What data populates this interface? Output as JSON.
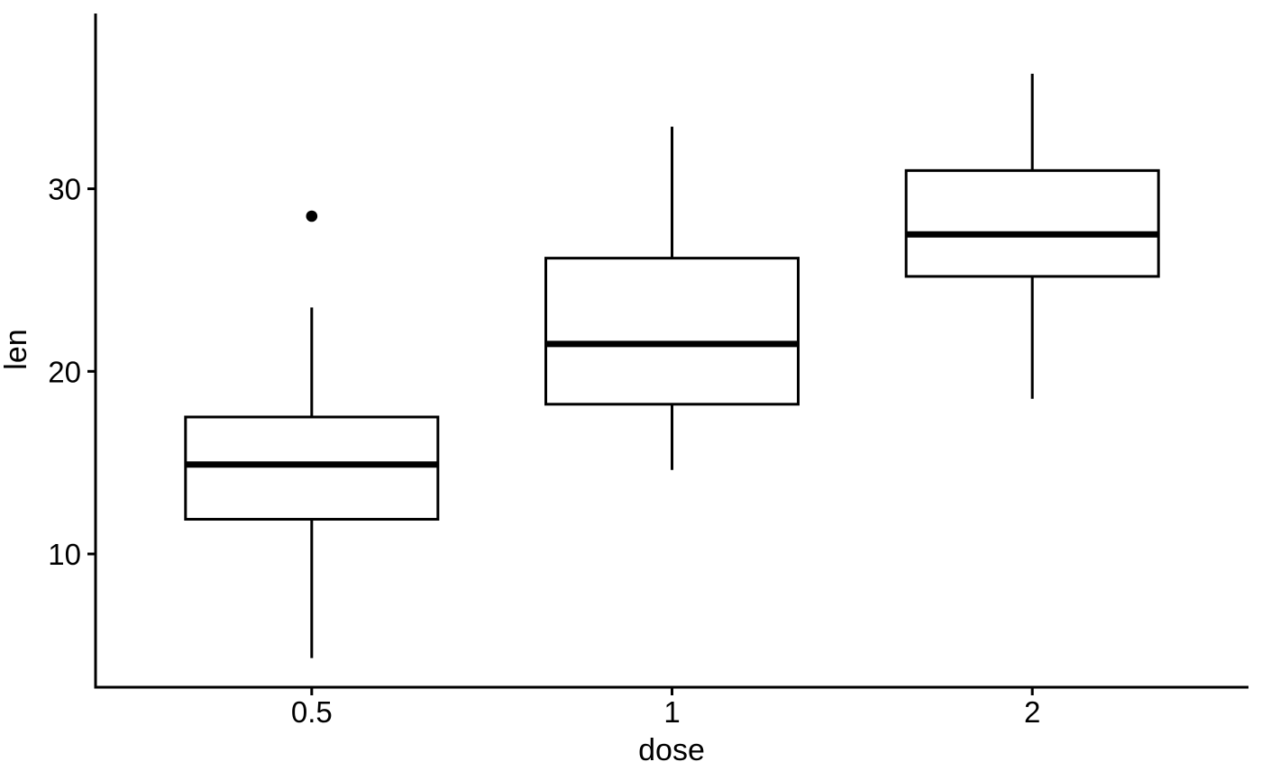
{
  "chart_data": {
    "type": "boxplot",
    "title": "",
    "xlabel": "dose",
    "ylabel": "len",
    "categories": [
      "0.5",
      "1",
      "2"
    ],
    "y_ticks": [
      10,
      20,
      30
    ],
    "ylim": [
      2.7,
      39.6
    ],
    "grid": false,
    "legend": "none",
    "background": "#ffffff",
    "stroke_color": "#000000",
    "text_color": "#000000",
    "box_fill": "#ffffff",
    "series": [
      {
        "category": "0.5",
        "whisker_low": 4.3,
        "q1": 11.9,
        "median": 14.9,
        "q3": 17.5,
        "whisker_high": 23.5,
        "outliers": [
          28.5
        ]
      },
      {
        "category": "1",
        "whisker_low": 14.6,
        "q1": 18.2,
        "median": 21.5,
        "q3": 26.2,
        "whisker_high": 33.4,
        "outliers": []
      },
      {
        "category": "2",
        "whisker_low": 18.5,
        "q1": 25.2,
        "median": 27.5,
        "q3": 31.0,
        "whisker_high": 36.3,
        "outliers": []
      }
    ]
  }
}
